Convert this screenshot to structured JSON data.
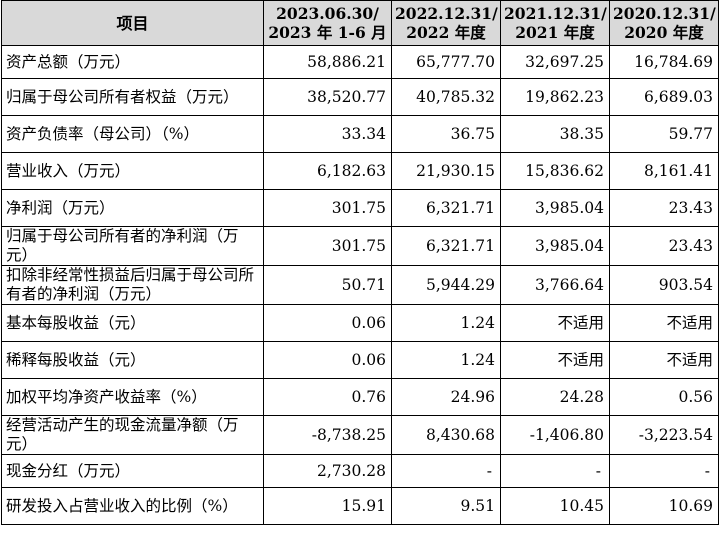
{
  "table": {
    "header": {
      "label": "项目",
      "periods": [
        {
          "line1": "2023.06.30/",
          "line2": "2023 年 1-6 月"
        },
        {
          "line1": "2022.12.31/",
          "line2": "2022 年度"
        },
        {
          "line1": "2021.12.31/",
          "line2": "2021 年度"
        },
        {
          "line1": "2020.12.31/",
          "line2": "2020 年度"
        }
      ]
    },
    "rows": [
      {
        "label": "资产总额（万元）",
        "values": [
          "58,886.21",
          "65,777.70",
          "32,697.25",
          "16,784.69"
        ]
      },
      {
        "label": "归属于母公司所有者权益（万元）",
        "values": [
          "38,520.77",
          "40,785.32",
          "19,862.23",
          "6,689.03"
        ]
      },
      {
        "label": "资产负债率（母公司）（%）",
        "values": [
          "33.34",
          "36.75",
          "38.35",
          "59.77"
        ]
      },
      {
        "label": "营业收入（万元）",
        "values": [
          "6,182.63",
          "21,930.15",
          "15,836.62",
          "8,161.41"
        ]
      },
      {
        "label": "净利润（万元）",
        "values": [
          "301.75",
          "6,321.71",
          "3,985.04",
          "23.43"
        ]
      },
      {
        "label": "归属于母公司所有者的净利润（万元）",
        "values": [
          "301.75",
          "6,321.71",
          "3,985.04",
          "23.43"
        ]
      },
      {
        "label": "扣除非经常性损益后归属于母公司所有者的净利润（万元）",
        "values": [
          "50.71",
          "5,944.29",
          "3,766.64",
          "903.54"
        ]
      },
      {
        "label": "基本每股收益（元）",
        "values": [
          "0.06",
          "1.24",
          "不适用",
          "不适用"
        ]
      },
      {
        "label": "稀释每股收益（元）",
        "values": [
          "0.06",
          "1.24",
          "不适用",
          "不适用"
        ]
      },
      {
        "label": "加权平均净资产收益率（%）",
        "values": [
          "0.76",
          "24.96",
          "24.28",
          "0.56"
        ]
      },
      {
        "label": "经营活动产生的现金流量净额（万元）",
        "values": [
          "-8,738.25",
          "8,430.68",
          "-1,406.80",
          "-3,223.54"
        ]
      },
      {
        "label": "现金分红（万元）",
        "values": [
          "2,730.28",
          "-",
          "-",
          "-"
        ]
      },
      {
        "label": "研发投入占营业收入的比例（%）",
        "values": [
          "15.91",
          "9.51",
          "10.45",
          "10.69"
        ]
      }
    ]
  }
}
